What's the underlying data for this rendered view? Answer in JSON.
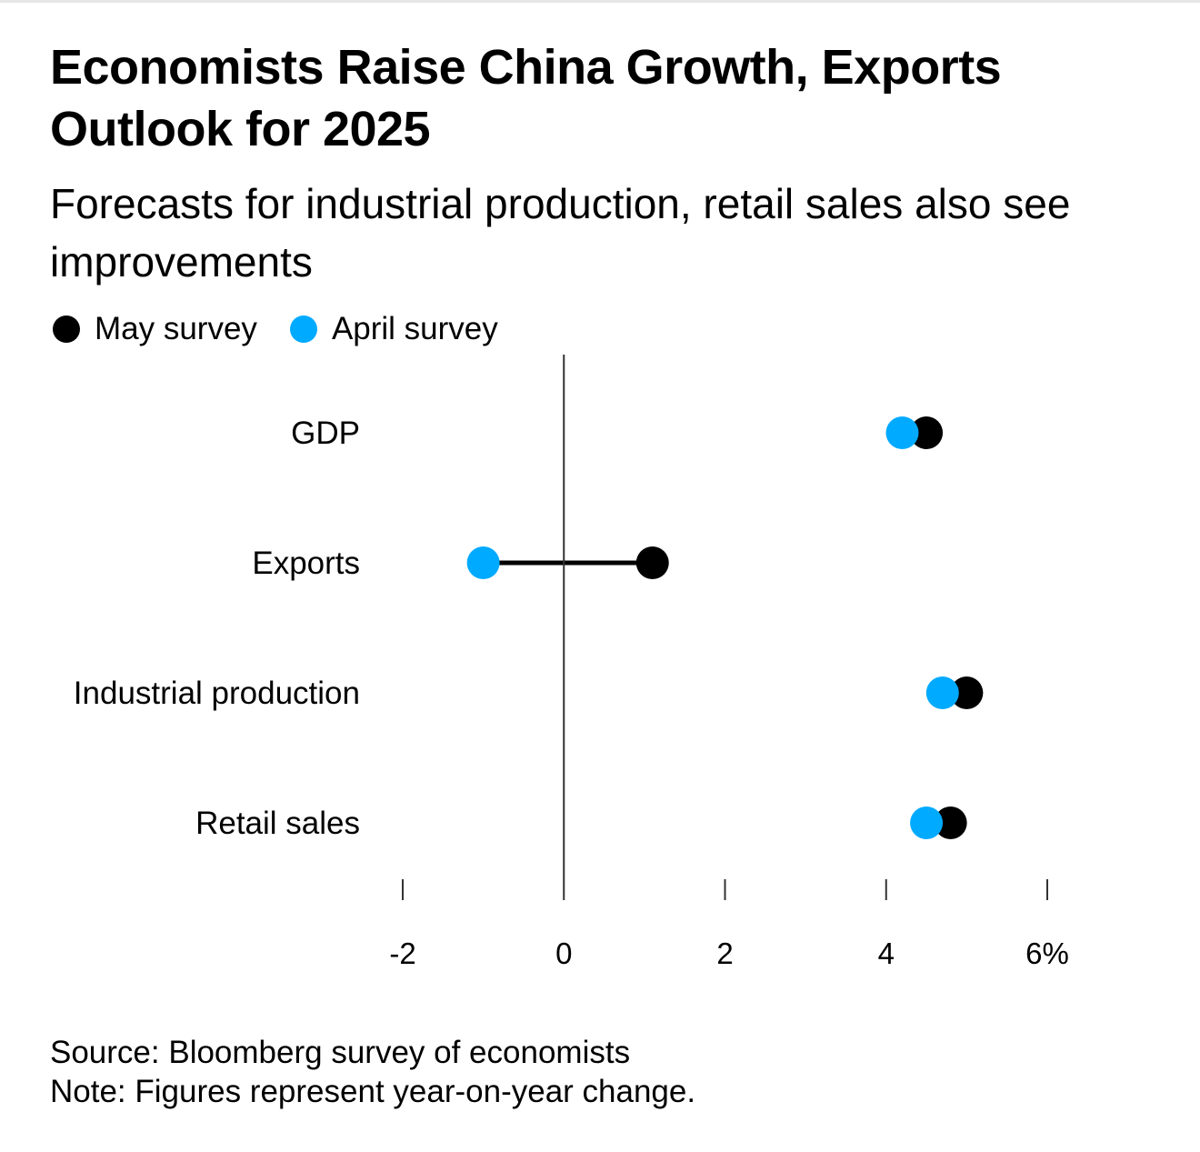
{
  "title": "Economists Raise China Growth, Exports Outlook for 2025",
  "subtitle": "Forecasts for industrial production, retail sales also see improvements",
  "colors": {
    "may": "#000000",
    "april": "#00aaff",
    "axis": "#333333",
    "connector": "#000000"
  },
  "legend": [
    {
      "label": "May survey",
      "color": "#000000"
    },
    {
      "label": "April survey",
      "color": "#00aaff"
    }
  ],
  "chart_data": {
    "type": "scatter",
    "subtype": "dumbbell",
    "title": "Economists Raise China Growth, Exports Outlook for 2025",
    "subtitle": "Forecasts for industrial production, retail sales also see improvements",
    "categories": [
      "GDP",
      "Exports",
      "Industrial production",
      "Retail sales"
    ],
    "series": [
      {
        "name": "May survey",
        "color": "#000000",
        "values": [
          4.5,
          1.1,
          5.0,
          4.8
        ]
      },
      {
        "name": "April survey",
        "color": "#00aaff",
        "values": [
          4.2,
          -1.0,
          4.7,
          4.5
        ]
      }
    ],
    "xlabel": "",
    "ylabel": "",
    "xlim": [
      -2,
      6
    ],
    "xticks": [
      -2,
      0,
      2,
      4,
      6
    ],
    "xtick_labels": [
      "-2",
      "0",
      "2",
      "4",
      "6%"
    ],
    "reference_line": 0,
    "grid": false,
    "legend_position": "top-left"
  },
  "footer": {
    "source": "Source: Bloomberg survey of economists",
    "note": "Note: Figures represent year-on-year change."
  }
}
